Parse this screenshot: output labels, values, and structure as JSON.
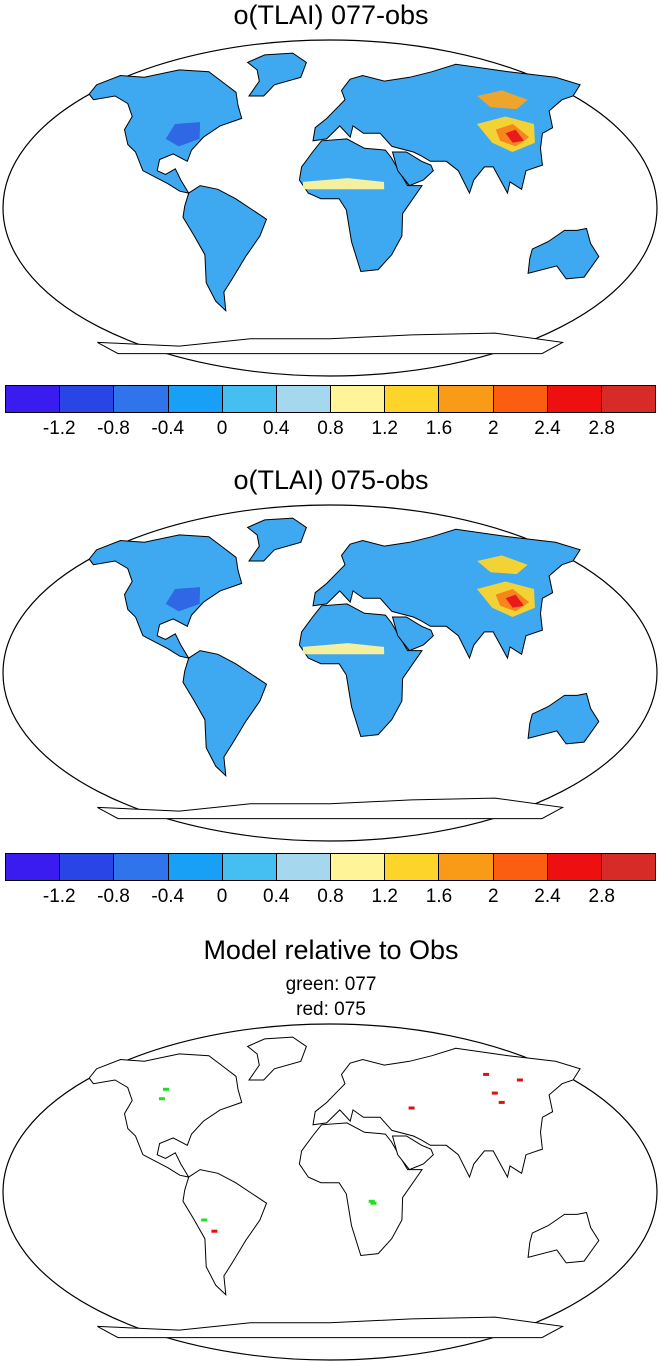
{
  "panels": [
    {
      "title": "o(TLAI) 077-obs",
      "land_fill": "#3ea9f0",
      "hotspots": [
        {
          "region": "east-asia",
          "color": "#fdd42a"
        },
        {
          "region": "east-asia-core",
          "color": "#f7811b"
        },
        {
          "region": "east-asia-peak",
          "color": "#e8141b"
        },
        {
          "region": "siberia",
          "color": "#f7a421"
        },
        {
          "region": "north-america-east",
          "color": "#2f63e4"
        },
        {
          "region": "sahel",
          "color": "#fff39a"
        }
      ]
    },
    {
      "title": "o(TLAI) 075-obs",
      "land_fill": "#3ea9f0",
      "hotspots": [
        {
          "region": "east-asia",
          "color": "#fdd42a"
        },
        {
          "region": "east-asia-core",
          "color": "#f7811b"
        },
        {
          "region": "east-asia-peak",
          "color": "#e8141b"
        },
        {
          "region": "siberia",
          "color": "#fdd42a"
        },
        {
          "region": "north-america-east",
          "color": "#2f63e4"
        },
        {
          "region": "sahel",
          "color": "#fff39a"
        }
      ]
    },
    {
      "title": "Model relative to Obs",
      "subtitle_1": "green: 077",
      "subtitle_2": "red: 075",
      "markers": [
        {
          "color": "#22dd22",
          "lon": -107,
          "lat": 55
        },
        {
          "color": "#22dd22",
          "lon": -106,
          "lat": 50
        },
        {
          "color": "#dd1111",
          "lon": 109,
          "lat": 63
        },
        {
          "color": "#dd1111",
          "lon": 129,
          "lat": 60
        },
        {
          "color": "#dd1111",
          "lon": 106,
          "lat": 53
        },
        {
          "color": "#dd1111",
          "lon": 107,
          "lat": 48
        },
        {
          "color": "#dd1111",
          "lon": 50,
          "lat": 45
        },
        {
          "color": "#22dd22",
          "lon": -70,
          "lat": -15
        },
        {
          "color": "#dd1111",
          "lon": -65,
          "lat": -21
        },
        {
          "color": "#22dd22",
          "lon": 23,
          "lat": -5
        },
        {
          "color": "#22dd22",
          "lon": 24,
          "lat": -6
        }
      ]
    }
  ],
  "colorbar": {
    "colors": [
      "#3a1cf0",
      "#2a45e6",
      "#2f74ea",
      "#17a0f5",
      "#45bff2",
      "#a5d8ee",
      "#fff598",
      "#fdd42a",
      "#f99b16",
      "#fb5e10",
      "#ee1010",
      "#d62b27"
    ],
    "tick_labels": [
      "-1.2",
      "-0.8",
      "-0.4",
      "0",
      "0.4",
      "0.8",
      "1.2",
      "1.6",
      "2",
      "2.4",
      "2.8"
    ]
  }
}
